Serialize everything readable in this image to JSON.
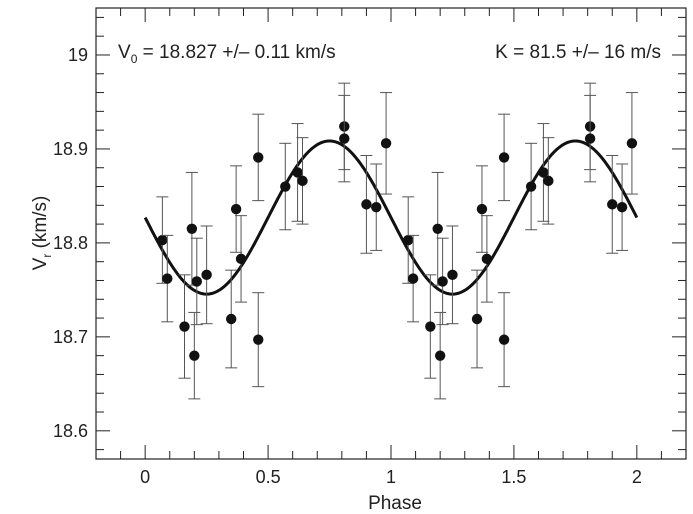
{
  "chart_data": {
    "type": "scatter",
    "title": "",
    "xlabel": "Phase",
    "ylabel": {
      "main": "V",
      "sub": "r",
      "rest": " (km/s)"
    },
    "xlim": [
      -0.2,
      2.2
    ],
    "ylim": [
      18.57,
      19.05
    ],
    "xticks": [
      {
        "v": 0,
        "label": "0"
      },
      {
        "v": 0.5,
        "label": "0.5"
      },
      {
        "v": 1,
        "label": "1"
      },
      {
        "v": 1.5,
        "label": "1.5"
      },
      {
        "v": 2,
        "label": "2"
      }
    ],
    "yticks": [
      {
        "v": 18.6,
        "label": "18.6"
      },
      {
        "v": 18.7,
        "label": "18.7"
      },
      {
        "v": 18.8,
        "label": "18.8"
      },
      {
        "v": 18.9,
        "label": "18.9"
      },
      {
        "v": 19.0,
        "label": "19"
      }
    ],
    "annotations": {
      "v0": {
        "main": "V",
        "sub": "0",
        "rest": " = 18.827 +/– 0.11 km/s"
      },
      "k": "K = 81.5 +/– 16 m/s"
    },
    "fit": {
      "type": "sine",
      "v0": 18.827,
      "amplitude": 0.0815,
      "phase_of_max": 0.75,
      "period": 1,
      "range": [
        0,
        2
      ]
    },
    "points": [
      {
        "x": 0.07,
        "y": 18.803,
        "err": 0.046
      },
      {
        "x": 0.09,
        "y": 18.762,
        "err": 0.046
      },
      {
        "x": 0.16,
        "y": 18.711,
        "err": 0.055
      },
      {
        "x": 0.19,
        "y": 18.815,
        "err": 0.06
      },
      {
        "x": 0.2,
        "y": 18.68,
        "err": 0.046
      },
      {
        "x": 0.21,
        "y": 18.759,
        "err": 0.046
      },
      {
        "x": 0.25,
        "y": 18.766,
        "err": 0.052
      },
      {
        "x": 0.35,
        "y": 18.719,
        "err": 0.052
      },
      {
        "x": 0.37,
        "y": 18.836,
        "err": 0.046
      },
      {
        "x": 0.39,
        "y": 18.783,
        "err": 0.046
      },
      {
        "x": 0.46,
        "y": 18.891,
        "err": 0.046
      },
      {
        "x": 0.46,
        "y": 18.697,
        "err": 0.05
      },
      {
        "x": 0.57,
        "y": 18.86,
        "err": 0.046
      },
      {
        "x": 0.62,
        "y": 18.875,
        "err": 0.052
      },
      {
        "x": 0.64,
        "y": 18.866,
        "err": 0.046
      },
      {
        "x": 0.81,
        "y": 18.924,
        "err": 0.046
      },
      {
        "x": 0.81,
        "y": 18.911,
        "err": 0.046
      },
      {
        "x": 0.9,
        "y": 18.841,
        "err": 0.052
      },
      {
        "x": 0.94,
        "y": 18.838,
        "err": 0.046
      },
      {
        "x": 0.98,
        "y": 18.906,
        "err": 0.054
      },
      {
        "x": 1.07,
        "y": 18.803,
        "err": 0.046
      },
      {
        "x": 1.09,
        "y": 18.762,
        "err": 0.046
      },
      {
        "x": 1.16,
        "y": 18.711,
        "err": 0.055
      },
      {
        "x": 1.19,
        "y": 18.815,
        "err": 0.06
      },
      {
        "x": 1.2,
        "y": 18.68,
        "err": 0.046
      },
      {
        "x": 1.21,
        "y": 18.759,
        "err": 0.046
      },
      {
        "x": 1.25,
        "y": 18.766,
        "err": 0.052
      },
      {
        "x": 1.35,
        "y": 18.719,
        "err": 0.052
      },
      {
        "x": 1.37,
        "y": 18.836,
        "err": 0.046
      },
      {
        "x": 1.39,
        "y": 18.783,
        "err": 0.046
      },
      {
        "x": 1.46,
        "y": 18.891,
        "err": 0.046
      },
      {
        "x": 1.46,
        "y": 18.697,
        "err": 0.05
      },
      {
        "x": 1.57,
        "y": 18.86,
        "err": 0.046
      },
      {
        "x": 1.62,
        "y": 18.875,
        "err": 0.052
      },
      {
        "x": 1.64,
        "y": 18.866,
        "err": 0.046
      },
      {
        "x": 1.81,
        "y": 18.924,
        "err": 0.046
      },
      {
        "x": 1.81,
        "y": 18.911,
        "err": 0.046
      },
      {
        "x": 1.9,
        "y": 18.841,
        "err": 0.052
      },
      {
        "x": 1.94,
        "y": 18.838,
        "err": 0.046
      },
      {
        "x": 1.98,
        "y": 18.906,
        "err": 0.054
      }
    ],
    "grid": false,
    "legend": "none"
  }
}
